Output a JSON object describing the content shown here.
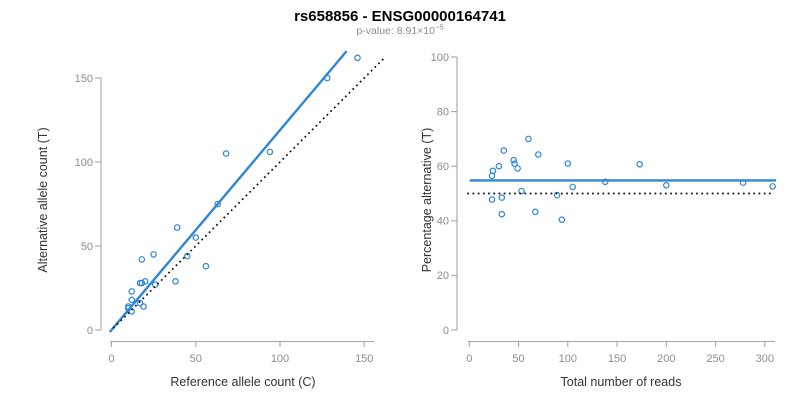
{
  "header": {
    "title": "rs658856 - ENSG00000164741",
    "subtitle_prefix": "p-value: ",
    "subtitle_mantissa": "8.91",
    "subtitle_times": "×10",
    "subtitle_exponent": "−5"
  },
  "colors": {
    "points_and_fit_blue": "#2e86d9",
    "dotted_reference_black": "#111111",
    "axis_gray": "#a6a6a6",
    "tick_label_gray": "#8c8c8c",
    "subtitle_gray": "#8c8c8c"
  },
  "chart_data": [
    {
      "type": "scatter",
      "panel": "left",
      "title": "",
      "xlabel": "Reference allele count (C)",
      "ylabel": "Alternative allele count (T)",
      "x_ticks": [
        0,
        50,
        100,
        150
      ],
      "y_ticks": [
        0,
        50,
        100,
        150
      ],
      "xlim": [
        -8,
        163
      ],
      "ylim": [
        -7,
        170
      ],
      "grid": false,
      "legend": "none",
      "points": [
        [
          10,
          13
        ],
        [
          10,
          14
        ],
        [
          12,
          11
        ],
        [
          12,
          18
        ],
        [
          19,
          14
        ],
        [
          17,
          16
        ],
        [
          12,
          23
        ],
        [
          17,
          28
        ],
        [
          18,
          28
        ],
        [
          20,
          29
        ],
        [
          26,
          27
        ],
        [
          18,
          42
        ],
        [
          38,
          29
        ],
        [
          25,
          45
        ],
        [
          45,
          44
        ],
        [
          56,
          38
        ],
        [
          39,
          61
        ],
        [
          50,
          55
        ],
        [
          63,
          75
        ],
        [
          68,
          105
        ],
        [
          94,
          106
        ],
        [
          128,
          150
        ],
        [
          146,
          162
        ]
      ],
      "lines": [
        {
          "kind": "regression",
          "style": "solid",
          "color": "#2e86d9",
          "slope": 1.19,
          "intercept": 0,
          "x_range": [
            -1,
            139.5
          ]
        },
        {
          "kind": "identity",
          "style": "dotted",
          "color": "#111111",
          "slope": 1,
          "intercept": 0,
          "x_range": [
            1,
            162.5
          ]
        }
      ]
    },
    {
      "type": "scatter",
      "panel": "right",
      "title": "",
      "xlabel": "Total number of reads",
      "ylabel": "Percentage alternative (T)",
      "x_ticks": [
        0,
        50,
        100,
        150,
        200,
        250,
        300
      ],
      "y_ticks": [
        0,
        20,
        40,
        60,
        80,
        100
      ],
      "xlim": [
        -12,
        320
      ],
      "ylim": [
        -5,
        104
      ],
      "grid": false,
      "legend": "none",
      "points": [
        [
          23,
          56.5
        ],
        [
          24,
          58.3
        ],
        [
          23,
          47.8
        ],
        [
          30,
          60.0
        ],
        [
          33,
          42.4
        ],
        [
          33,
          48.5
        ],
        [
          35,
          65.7
        ],
        [
          45,
          62.2
        ],
        [
          46,
          60.9
        ],
        [
          49,
          59.2
        ],
        [
          53,
          50.9
        ],
        [
          60,
          70.0
        ],
        [
          67,
          43.3
        ],
        [
          70,
          64.3
        ],
        [
          89,
          49.4
        ],
        [
          94,
          40.4
        ],
        [
          100,
          61.0
        ],
        [
          105,
          52.4
        ],
        [
          138,
          54.3
        ],
        [
          173,
          60.7
        ],
        [
          200,
          53.0
        ],
        [
          278,
          54.0
        ],
        [
          308,
          52.6
        ]
      ],
      "lines": [
        {
          "kind": "mean-fit",
          "style": "solid",
          "color": "#2e86d9",
          "slope": 0,
          "intercept": 54.8,
          "x_range": [
            0.3,
            311.5
          ]
        },
        {
          "kind": "null-50-percent",
          "style": "dotted",
          "color": "#111111",
          "slope": 0,
          "intercept": 50,
          "x_range": [
            -2,
            308
          ]
        }
      ]
    }
  ]
}
